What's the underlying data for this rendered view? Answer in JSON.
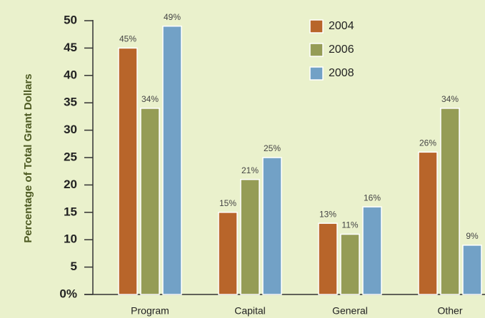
{
  "chart_data": {
    "type": "bar",
    "y_label": "Percentage of Total Grant Dollars",
    "categories": [
      "Program",
      "Capital",
      "General",
      "Other"
    ],
    "series": [
      {
        "name": "2004",
        "color": "#b8652a",
        "values": [
          45,
          15,
          13,
          26
        ],
        "value_labels": [
          "45%",
          "15%",
          "13%",
          "26%"
        ]
      },
      {
        "name": "2006",
        "color": "#959c56",
        "values": [
          34,
          21,
          11,
          34
        ],
        "value_labels": [
          "34%",
          "21%",
          "11%",
          "34%"
        ]
      },
      {
        "name": "2008",
        "color": "#72a1c6",
        "values": [
          49,
          25,
          16,
          9
        ],
        "value_labels": [
          "49%",
          "25%",
          "16%",
          "9%"
        ]
      }
    ],
    "ylim": [
      0,
      50
    ],
    "yticks": [
      {
        "value": 0,
        "label": "0%"
      },
      5,
      10,
      15,
      20,
      25,
      30,
      35,
      40,
      45,
      50
    ],
    "legend": "top-right"
  }
}
